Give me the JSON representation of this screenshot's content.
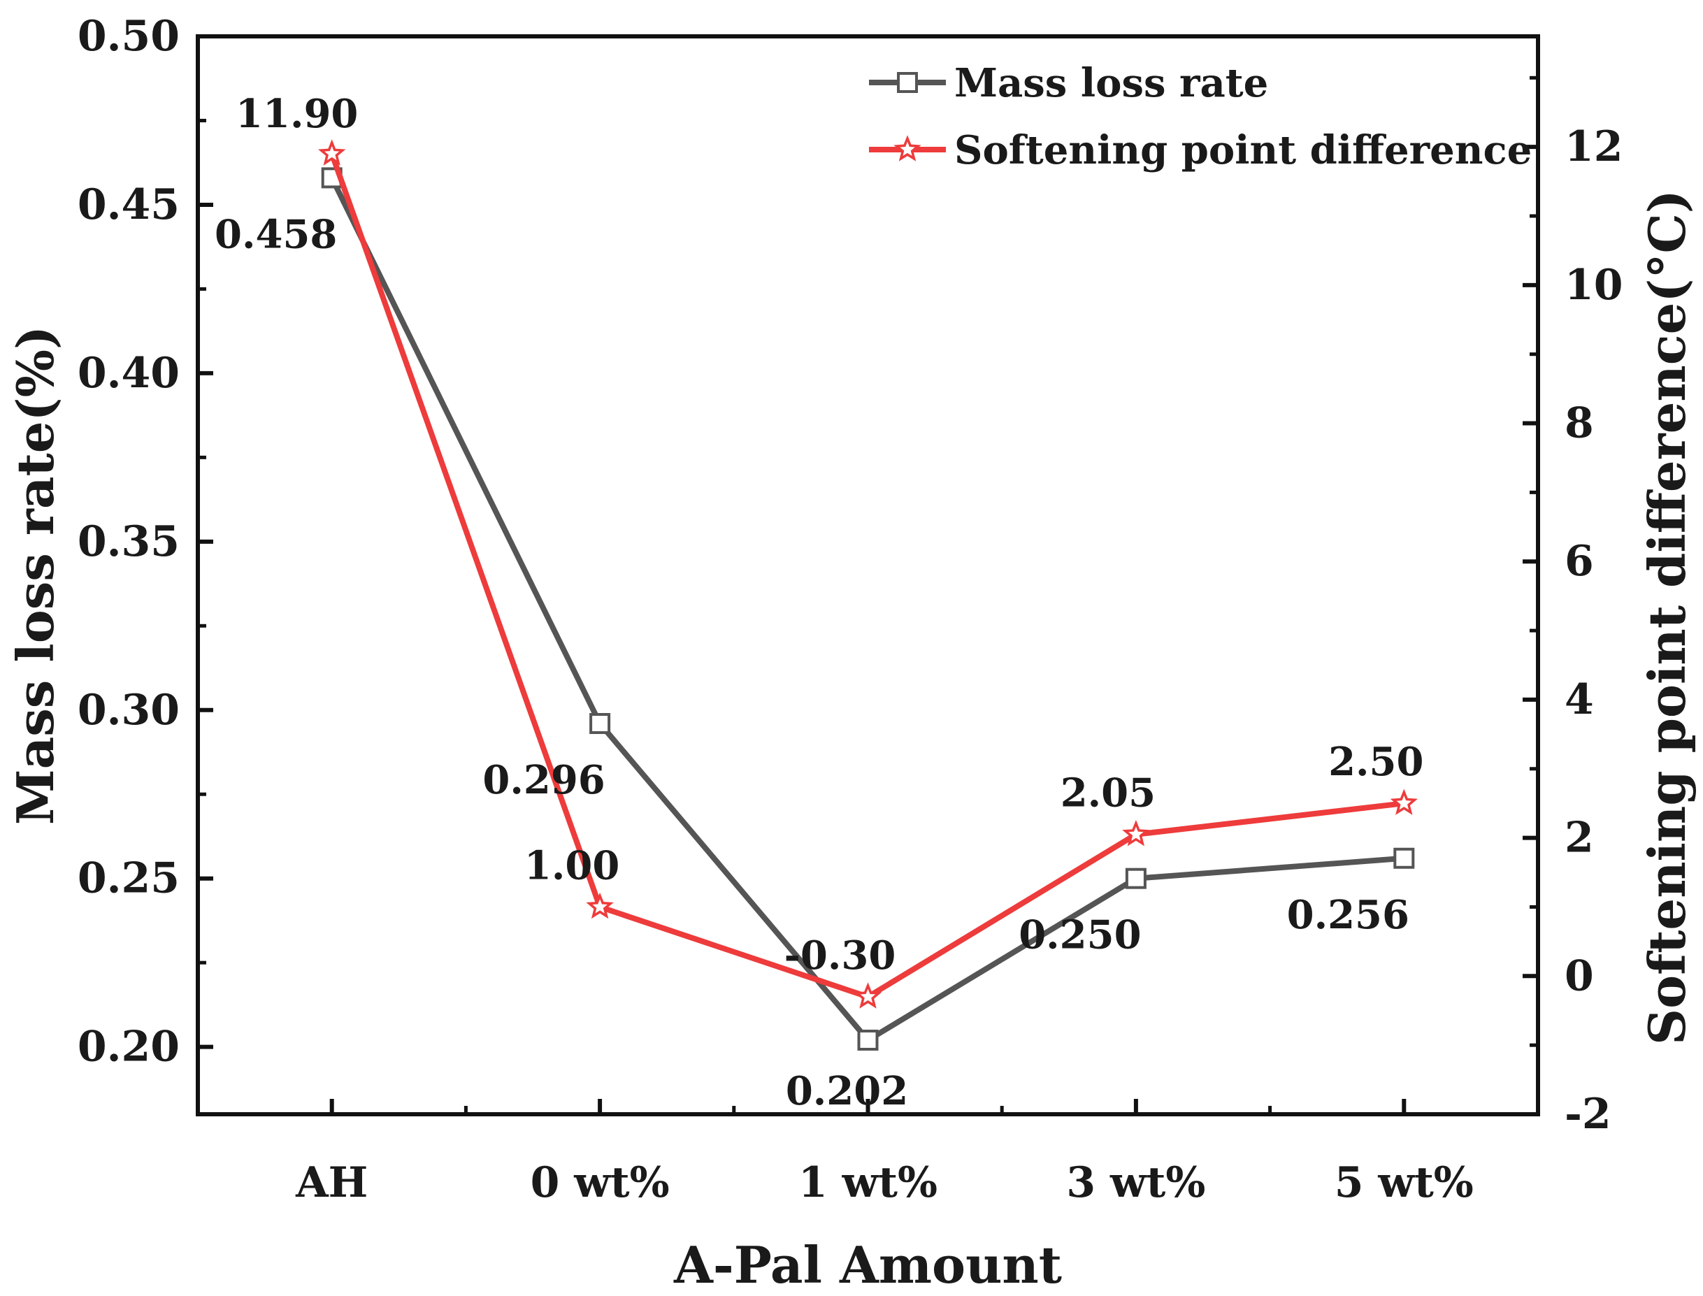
{
  "chart_data": {
    "type": "line",
    "categories": [
      "AH",
      "0 wt%",
      "1 wt%",
      "3 wt%",
      "5 wt%"
    ],
    "xlabel": "A-Pal Amount",
    "ylabel": "Mass loss rate(%)",
    "ylabel_right": "Softening point difference(°C)",
    "ylim": [
      0.18,
      0.5
    ],
    "ylim_right": [
      -2,
      13.6
    ],
    "yticks": [
      0.2,
      0.25,
      0.3,
      0.35,
      0.4,
      0.45,
      0.5
    ],
    "ytick_labels": [
      "0.20",
      "0.25",
      "0.30",
      "0.35",
      "0.40",
      "0.45",
      "0.50"
    ],
    "yticks_right": [
      -2,
      0,
      2,
      4,
      6,
      8,
      10,
      12
    ],
    "ytick_labels_right": [
      "-2",
      "0",
      "2",
      "4",
      "6",
      "8",
      "10",
      "12"
    ],
    "series": [
      {
        "name": "Mass loss rate",
        "axis": "left",
        "color": "#555555",
        "marker": "square",
        "values": [
          0.458,
          0.296,
          0.202,
          0.25,
          0.256
        ],
        "labels": [
          "0.458",
          "0.296",
          "0.202",
          "0.250",
          "0.256"
        ]
      },
      {
        "name": "Softening point difference",
        "axis": "right",
        "color": "#ee3b3b",
        "marker": "star",
        "values": [
          11.9,
          1.0,
          -0.3,
          2.05,
          2.5
        ],
        "labels": [
          "11.90",
          "1.00",
          "-0.30",
          "2.05",
          "2.50"
        ]
      }
    ],
    "legend_position": "top-right"
  }
}
